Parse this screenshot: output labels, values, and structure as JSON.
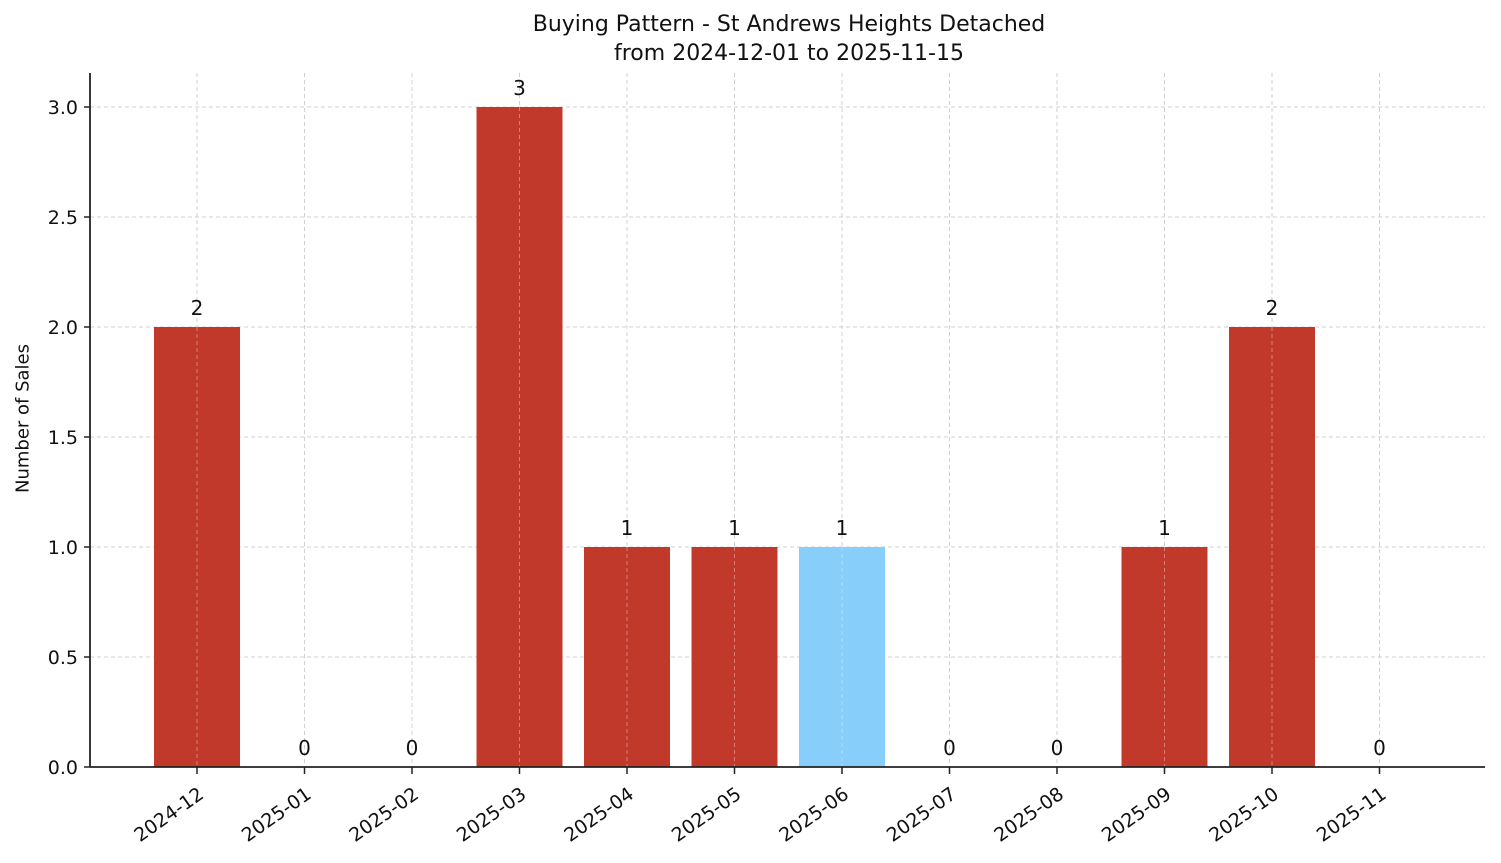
{
  "chart_data": {
    "type": "bar",
    "title": "Buying Pattern - St Andrews Heights Detached",
    "subtitle": "from 2024-12-01 to 2025-11-15",
    "xlabel": "",
    "ylabel": "Number of Sales",
    "categories": [
      "2024-12",
      "2025-01",
      "2025-02",
      "2025-03",
      "2025-04",
      "2025-05",
      "2025-06",
      "2025-07",
      "2025-08",
      "2025-09",
      "2025-10",
      "2025-11"
    ],
    "values": [
      2,
      0,
      0,
      3,
      1,
      1,
      1,
      0,
      0,
      1,
      2,
      0
    ],
    "bar_colors": [
      "#c0392b",
      "#c0392b",
      "#c0392b",
      "#c0392b",
      "#c0392b",
      "#c0392b",
      "#87cefa",
      "#c0392b",
      "#c0392b",
      "#c0392b",
      "#c0392b",
      "#c0392b"
    ],
    "highlight_category": "2025-06",
    "data_labels": [
      "2",
      "0",
      "0",
      "3",
      "1",
      "1",
      "1",
      "0",
      "0",
      "1",
      "2",
      "0"
    ],
    "ylim": [
      0,
      3.15
    ],
    "yticks": [
      "0.0",
      "0.5",
      "1.0",
      "1.5",
      "2.0",
      "2.5",
      "3.0"
    ],
    "grid": true,
    "legend": null
  }
}
